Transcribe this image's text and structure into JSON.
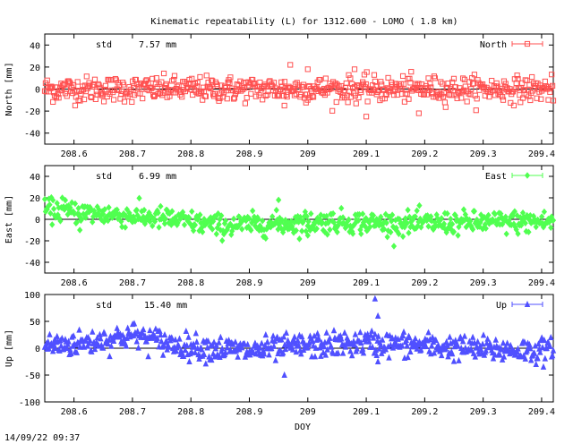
{
  "title": "Kinematic repeatability (L) for 1312.600 - LOMO  (  1.8 km)",
  "timestamp": "14/09/22 09:37",
  "xlabel": "DOY",
  "colors": {
    "north": "#ff5050",
    "east": "#50ff50",
    "up": "#5050ff",
    "zero": "#000000"
  },
  "chart_data": [
    {
      "type": "scatter",
      "series": [
        {
          "name": "North",
          "marker": "square"
        }
      ],
      "ylabel": "North [mm]",
      "std_label": "std",
      "std_value": "7.57 mm",
      "std": 7.57,
      "ylim": [
        -50,
        50
      ],
      "yticks": [
        -40,
        -20,
        0,
        20,
        40
      ],
      "xlim": [
        208.55,
        209.42
      ],
      "xticks": [
        "208.6",
        "208.7",
        "208.8",
        "208.9",
        "209",
        "209.1",
        "209.2",
        "209.3",
        "209.4"
      ],
      "features": [
        {
          "x": 208.57,
          "y": -8
        },
        {
          "x": 208.96,
          "y": -15
        },
        {
          "x": 208.97,
          "y": 22
        },
        {
          "x": 209.0,
          "y": 18
        },
        {
          "x": 209.08,
          "y": 18
        },
        {
          "x": 209.1,
          "y": -25
        },
        {
          "x": 209.19,
          "y": -22
        }
      ],
      "legend": "top-right"
    },
    {
      "type": "scatter",
      "series": [
        {
          "name": "East",
          "marker": "diamond"
        }
      ],
      "ylabel": "East [mm]",
      "std_label": "std",
      "std_value": "6.99 mm",
      "std": 6.99,
      "ylim": [
        -50,
        50
      ],
      "yticks": [
        -40,
        -20,
        0,
        20,
        40
      ],
      "xlim": [
        208.55,
        209.42
      ],
      "xticks": [
        "208.6",
        "208.7",
        "208.8",
        "208.9",
        "209",
        "209.1",
        "209.2",
        "209.3",
        "209.4"
      ],
      "trend": [
        {
          "x": 208.55,
          "y": 9
        },
        {
          "x": 208.65,
          "y": 5
        },
        {
          "x": 208.75,
          "y": 1
        },
        {
          "x": 208.85,
          "y": -6
        },
        {
          "x": 208.95,
          "y": -4
        },
        {
          "x": 209.05,
          "y": -2
        },
        {
          "x": 209.15,
          "y": -4
        },
        {
          "x": 209.3,
          "y": -3
        },
        {
          "x": 209.42,
          "y": -2
        }
      ],
      "features": [
        {
          "x": 208.58,
          "y": 20
        },
        {
          "x": 208.95,
          "y": 18
        },
        {
          "x": 209.0,
          "y": -15
        },
        {
          "x": 208.61,
          "y": -10
        }
      ],
      "legend": "top-right"
    },
    {
      "type": "scatter",
      "series": [
        {
          "name": "Up",
          "marker": "triangle"
        }
      ],
      "ylabel": "Up [mm]",
      "std_label": "std",
      "std_value": "15.40 mm",
      "std": 15.4,
      "ylim": [
        -100,
        100
      ],
      "yticks": [
        -100,
        -50,
        0,
        50,
        100
      ],
      "xlim": [
        208.55,
        209.42
      ],
      "xticks": [
        "208.6",
        "208.7",
        "208.8",
        "208.9",
        "209",
        "209.1",
        "209.2",
        "209.3",
        "209.4"
      ],
      "trend": [
        {
          "x": 208.55,
          "y": 5
        },
        {
          "x": 208.62,
          "y": 10
        },
        {
          "x": 208.7,
          "y": 25
        },
        {
          "x": 208.78,
          "y": 5
        },
        {
          "x": 208.9,
          "y": -5
        },
        {
          "x": 209.0,
          "y": 5
        },
        {
          "x": 209.1,
          "y": 10
        },
        {
          "x": 209.2,
          "y": 5
        },
        {
          "x": 209.3,
          "y": -2
        },
        {
          "x": 209.42,
          "y": -5
        }
      ],
      "features": [
        {
          "x": 209.115,
          "y": 92
        },
        {
          "x": 209.12,
          "y": 60
        },
        {
          "x": 208.96,
          "y": -50
        },
        {
          "x": 209.12,
          "y": -25
        }
      ],
      "legend": "top-right"
    }
  ]
}
